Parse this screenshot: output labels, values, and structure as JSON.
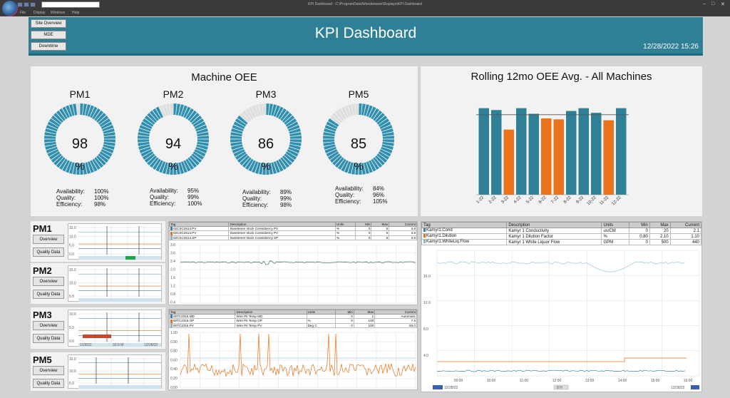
{
  "window": {
    "title": "KPI Dashboard  -  C:\\ProgramData\\Wonderware\\Displays\\KPI Dashboard",
    "menu": [
      "File",
      "Display",
      "Windows",
      "Help"
    ]
  },
  "header": {
    "title": "KPI Dashboard",
    "datetime": "12/28/2022 15:26",
    "nav": [
      "Site Overview",
      "MDE",
      "Downtime"
    ]
  },
  "oee": {
    "title": "Machine OEE",
    "stat_labels": [
      "Availability:",
      "Quality:",
      "Efficiency:"
    ],
    "pct_symbol": "%",
    "gauges": [
      {
        "name": "PM1",
        "value": "98",
        "fraction": 0.98,
        "availability": "100%",
        "quality": "100%",
        "efficiency": "98%"
      },
      {
        "name": "PM2",
        "value": "94",
        "fraction": 0.94,
        "availability": "95%",
        "quality": "99%",
        "efficiency": "100%"
      },
      {
        "name": "PM3",
        "value": "86",
        "fraction": 0.86,
        "availability": "89%",
        "quality": "99%",
        "efficiency": "98%"
      },
      {
        "name": "PM5",
        "value": "85",
        "fraction": 0.85,
        "availability": "84%",
        "quality": "96%",
        "efficiency": "105%"
      }
    ]
  },
  "chart_data": {
    "type": "bar",
    "title": "Rolling 12mo OEE Avg. - All Machines",
    "categories": [
      "1-22",
      "2-22",
      "3-22",
      "4-22",
      "5-22",
      "6-22",
      "7-22",
      "8-22",
      "9-22",
      "10-22",
      "11-22",
      "12-22"
    ],
    "values": [
      93,
      91,
      70,
      93,
      87,
      82,
      81,
      90,
      93,
      88,
      80,
      93
    ],
    "colors": [
      "#2f8096",
      "#2f8096",
      "#e8731a",
      "#2f8096",
      "#2f8096",
      "#e8731a",
      "#e8731a",
      "#2f8096",
      "#2f8096",
      "#2f8096",
      "#e8731a",
      "#2f8096"
    ],
    "target": 86,
    "ylim": [
      0,
      105
    ]
  },
  "machines": [
    {
      "name": "PM1",
      "buttons": [
        "Overview",
        "Quality Data"
      ],
      "ticks": [
        "15.0",
        "10.0",
        "5.0",
        "0.0"
      ]
    },
    {
      "name": "PM2",
      "buttons": [
        "Overview",
        "Quality Data"
      ],
      "ticks": [
        "15.0",
        "10.0",
        "5.0"
      ]
    },
    {
      "name": "PM3",
      "buttons": [
        "Overview",
        "Quality Data"
      ],
      "ticks": [
        "10.0",
        "5.0",
        "0.0"
      ],
      "footer": [
        "1/28/22",
        "33.6 M",
        "12/28/22"
      ]
    },
    {
      "name": "PM5",
      "buttons": [
        "Overview",
        "Quality Data"
      ],
      "ticks": [
        "15.0",
        "10.0",
        "5.0"
      ]
    }
  ],
  "trend_consistency": {
    "columns": [
      "Tag",
      "Description",
      "Units",
      "Min",
      "Max",
      "Current"
    ],
    "rows": [
      {
        "tag": "02CSC2514.PV",
        "desc": "Sweetener stock Consistency PV",
        "units": "%",
        "min": "0",
        "max": "6",
        "current": "3.8",
        "color": "#3a7fb0"
      },
      {
        "tag": "02CSC2514.PV",
        "desc": "Sweetener stock Consistency PV",
        "units": "%",
        "min": "0",
        "max": "6",
        "current": "3.8",
        "color": "#e8731a"
      },
      {
        "tag": "02CSC2514.SP",
        "desc": "Sweetener stock Consistency SP",
        "units": "%",
        "min": "0",
        "max": "6",
        "current": "3.8",
        "color": "#8fb3c4"
      }
    ],
    "ticks": [
      "3.8",
      "3.6",
      "2.4",
      "2.0",
      "1.6",
      "1.2",
      "0.8",
      "0.4"
    ]
  },
  "trend_wirepit": {
    "columns": [
      "Tag",
      "Description",
      "Units",
      "Min",
      "Max",
      "Current"
    ],
    "rows": [
      {
        "tag": "00TC2316.MD",
        "desc": "Wire Pit Temp MD",
        "units": "",
        "min": "0",
        "max": "1",
        "current": "Automatic",
        "color": "#3a7fb0"
      },
      {
        "tag": "00TC2316.OP",
        "desc": "Wire Pit Temp OP",
        "units": "%",
        "min": "0",
        "max": "100",
        "current": "7.6",
        "color": "#e8731a"
      },
      {
        "tag": "00TC2316.PV",
        "desc": "Wire Pit Temp PV",
        "units": "Deg C",
        "min": "0",
        "max": "100",
        "current": "55.0",
        "color": "#8fb3c4"
      }
    ],
    "ticks": [
      "1.00",
      "0.90",
      "0.80",
      "0.60",
      "0.40",
      "0.20",
      "0.00"
    ]
  },
  "trend_kamyr": {
    "columns": [
      "Tag",
      "Description",
      "Units",
      "Min",
      "Max",
      "Current"
    ],
    "rows": [
      {
        "tag": "Kamyr1.Cond",
        "desc": "Kamyr 1 Conductivity",
        "units": "us/CM",
        "min": "0",
        "max": "20",
        "current": "2.1",
        "color": "#3a7fb0"
      },
      {
        "tag": "Kamyr1.Dilution",
        "desc": "Kamyr 1 Dilution Factor",
        "units": "%",
        "min": "0.80",
        "max": "2.10",
        "current": "1.10",
        "color": "#e8731a"
      },
      {
        "tag": "Kamyr1.WhiteLiq.Flow",
        "desc": "Kamyr 1 White Liquor Flow",
        "units": "GPM",
        "min": "0",
        "max": "500",
        "current": "440",
        "color": "#8fb3c4"
      }
    ],
    "yticks": [
      "16.0",
      "12.0",
      "8.0",
      "4.0"
    ],
    "xticks": [
      "09:00",
      "10:00",
      "11:00",
      "12:00",
      "13:00",
      "14:00",
      "15:00",
      "16:00"
    ],
    "footer": [
      "12/28/22",
      "8 H",
      "12/28/22"
    ]
  }
}
